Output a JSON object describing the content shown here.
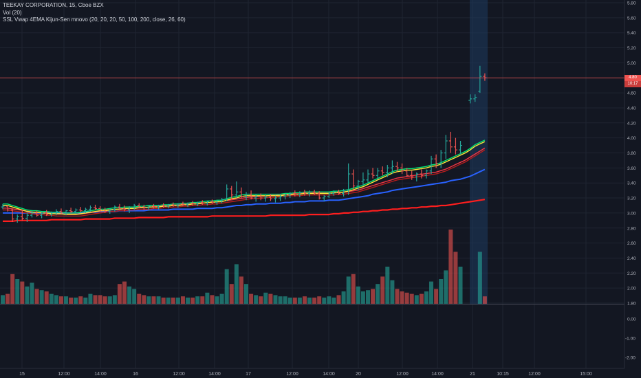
{
  "header": {
    "symbol_line": "TEEKAY CORPORATION, 15, Cboe BZX",
    "volume_line": "Vol (20)",
    "indicator_line": "SSL Vwap 4EMA Kijun-Sen mnovo (20, 20, 20, 50, 100, 200, close, 26, 60)"
  },
  "price_badge": {
    "price": "4.80",
    "time": "10:17"
  },
  "colors": {
    "background": "#131722",
    "grid": "#1f2431",
    "axis_text": "#b2b5be",
    "up": "#26a69a",
    "down": "#ef5350",
    "ema_green": "#00e676",
    "ema_yellow": "#ffeb3b",
    "ema_red": "#f23645",
    "ema_darkred": "#b71c1c",
    "vwap_blue": "#2962ff",
    "long_red": "#ff1e1e",
    "highlight": "#1e3a5f"
  },
  "chart_data": {
    "type": "candlestick",
    "price_axis": {
      "min": 1.8,
      "max": 5.8,
      "ticks": [
        "1.80",
        "2.00",
        "2.20",
        "2.40",
        "2.60",
        "2.80",
        "3.00",
        "3.20",
        "3.40",
        "3.60",
        "3.80",
        "4.00",
        "4.20",
        "4.40",
        "4.60",
        "4.80",
        "5.00",
        "5.20",
        "5.40",
        "5.60",
        "5.80"
      ]
    },
    "volume_panel_axis": {
      "ticks": [
        "0.00",
        "-1.00",
        "-2.00"
      ]
    },
    "x_axis_labels": [
      "15",
      "12:00",
      "14:00",
      "16",
      "12:00",
      "14:00",
      "17",
      "12:00",
      "14:00",
      "20",
      "12:00",
      "14:00",
      "21",
      "10:15",
      "12:00",
      "15:00"
    ],
    "last_price": 4.8,
    "bars": [
      [
        3.08,
        3.12,
        3.05,
        3.09,
        35
      ],
      [
        3.09,
        3.1,
        3.02,
        3.04,
        40
      ],
      [
        3.04,
        3.06,
        2.88,
        2.92,
        120
      ],
      [
        2.92,
        2.98,
        2.87,
        2.95,
        100
      ],
      [
        2.95,
        3.05,
        2.9,
        2.93,
        90
      ],
      [
        2.93,
        3.0,
        2.88,
        2.97,
        70
      ],
      [
        2.97,
        3.04,
        2.94,
        3.0,
        85
      ],
      [
        3.0,
        3.03,
        2.95,
        2.97,
        60
      ],
      [
        2.97,
        3.02,
        2.93,
        3.0,
        55
      ],
      [
        3.0,
        3.04,
        2.96,
        2.98,
        50
      ],
      [
        2.98,
        3.02,
        2.95,
        3.0,
        40
      ],
      [
        3.0,
        3.05,
        2.97,
        3.02,
        35
      ],
      [
        3.02,
        3.06,
        2.99,
        3.01,
        30
      ],
      [
        3.01,
        3.04,
        2.97,
        3.03,
        30
      ],
      [
        3.03,
        3.07,
        3.0,
        3.02,
        25
      ],
      [
        3.02,
        3.06,
        2.99,
        3.04,
        25
      ],
      [
        3.04,
        3.08,
        3.01,
        3.03,
        30
      ],
      [
        3.03,
        3.07,
        3.0,
        3.05,
        25
      ],
      [
        3.05,
        3.1,
        3.02,
        3.07,
        40
      ],
      [
        3.07,
        3.11,
        3.04,
        3.06,
        35
      ],
      [
        3.06,
        3.09,
        3.02,
        3.04,
        35
      ],
      [
        3.04,
        3.07,
        3.0,
        3.02,
        30
      ],
      [
        3.02,
        3.06,
        2.99,
        3.05,
        30
      ],
      [
        3.05,
        3.1,
        3.02,
        3.08,
        35
      ],
      [
        3.08,
        3.12,
        3.04,
        3.06,
        80
      ],
      [
        3.06,
        3.1,
        3.02,
        3.05,
        90
      ],
      [
        3.05,
        3.09,
        3.0,
        3.07,
        70
      ],
      [
        3.07,
        3.12,
        3.04,
        3.1,
        60
      ],
      [
        3.1,
        3.13,
        3.06,
        3.08,
        40
      ],
      [
        3.08,
        3.11,
        3.04,
        3.07,
        35
      ],
      [
        3.07,
        3.1,
        3.03,
        3.09,
        30
      ],
      [
        3.09,
        3.12,
        3.06,
        3.08,
        30
      ],
      [
        3.08,
        3.11,
        3.05,
        3.1,
        30
      ],
      [
        3.1,
        3.13,
        3.07,
        3.09,
        25
      ],
      [
        3.09,
        3.12,
        3.06,
        3.11,
        25
      ],
      [
        3.11,
        3.14,
        3.08,
        3.1,
        25
      ],
      [
        3.1,
        3.13,
        3.07,
        3.12,
        25
      ],
      [
        3.12,
        3.15,
        3.09,
        3.11,
        30
      ],
      [
        3.11,
        3.14,
        3.08,
        3.13,
        25
      ],
      [
        3.13,
        3.16,
        3.1,
        3.12,
        25
      ],
      [
        3.12,
        3.15,
        3.09,
        3.14,
        30
      ],
      [
        3.14,
        3.17,
        3.11,
        3.13,
        30
      ],
      [
        3.13,
        3.16,
        3.1,
        3.15,
        45
      ],
      [
        3.15,
        3.18,
        3.12,
        3.14,
        35
      ],
      [
        3.14,
        3.17,
        3.11,
        3.16,
        30
      ],
      [
        3.16,
        3.2,
        3.13,
        3.18,
        40
      ],
      [
        3.18,
        3.38,
        3.16,
        3.32,
        140
      ],
      [
        3.32,
        3.36,
        3.18,
        3.24,
        80
      ],
      [
        3.24,
        3.42,
        3.2,
        3.28,
        160
      ],
      [
        3.28,
        3.34,
        3.2,
        3.22,
        110
      ],
      [
        3.22,
        3.28,
        3.17,
        3.25,
        80
      ],
      [
        3.25,
        3.3,
        3.18,
        3.2,
        40
      ],
      [
        3.2,
        3.25,
        3.15,
        3.22,
        35
      ],
      [
        3.22,
        3.26,
        3.17,
        3.2,
        30
      ],
      [
        3.2,
        3.24,
        3.15,
        3.21,
        45
      ],
      [
        3.21,
        3.25,
        3.16,
        3.19,
        40
      ],
      [
        3.19,
        3.23,
        3.14,
        3.2,
        35
      ],
      [
        3.2,
        3.24,
        3.16,
        3.22,
        30
      ],
      [
        3.22,
        3.26,
        3.18,
        3.24,
        30
      ],
      [
        3.24,
        3.28,
        3.2,
        3.26,
        25
      ],
      [
        3.26,
        3.3,
        3.22,
        3.25,
        25
      ],
      [
        3.25,
        3.29,
        3.21,
        3.27,
        25
      ],
      [
        3.27,
        3.31,
        3.23,
        3.26,
        30
      ],
      [
        3.26,
        3.3,
        3.22,
        3.28,
        25
      ],
      [
        3.28,
        3.31,
        3.24,
        3.26,
        25
      ],
      [
        3.26,
        3.29,
        3.18,
        3.2,
        30
      ],
      [
        3.2,
        3.24,
        3.16,
        3.22,
        25
      ],
      [
        3.22,
        3.28,
        3.2,
        3.26,
        30
      ],
      [
        3.26,
        3.3,
        3.23,
        3.28,
        25
      ],
      [
        3.28,
        3.31,
        3.24,
        3.26,
        35
      ],
      [
        3.26,
        3.32,
        3.22,
        3.3,
        50
      ],
      [
        3.3,
        3.66,
        3.24,
        3.52,
        110
      ],
      [
        3.52,
        3.58,
        3.32,
        3.36,
        120
      ],
      [
        3.36,
        3.44,
        3.3,
        3.42,
        70
      ],
      [
        3.42,
        3.54,
        3.36,
        3.44,
        50
      ],
      [
        3.44,
        3.58,
        3.4,
        3.52,
        55
      ],
      [
        3.52,
        3.6,
        3.46,
        3.5,
        60
      ],
      [
        3.5,
        3.6,
        3.45,
        3.56,
        80
      ],
      [
        3.56,
        3.62,
        3.5,
        3.54,
        110
      ],
      [
        3.54,
        3.64,
        3.48,
        3.6,
        150
      ],
      [
        3.6,
        3.7,
        3.52,
        3.62,
        95
      ],
      [
        3.62,
        3.68,
        3.55,
        3.6,
        60
      ],
      [
        3.6,
        3.66,
        3.52,
        3.56,
        50
      ],
      [
        3.56,
        3.6,
        3.48,
        3.5,
        45
      ],
      [
        3.5,
        3.56,
        3.44,
        3.48,
        40
      ],
      [
        3.48,
        3.54,
        3.42,
        3.52,
        35
      ],
      [
        3.52,
        3.58,
        3.46,
        3.5,
        40
      ],
      [
        3.5,
        3.58,
        3.46,
        3.56,
        50
      ],
      [
        3.56,
        3.76,
        3.52,
        3.72,
        90
      ],
      [
        3.72,
        3.78,
        3.6,
        3.66,
        60
      ],
      [
        3.66,
        3.84,
        3.6,
        3.8,
        100
      ],
      [
        3.8,
        4.04,
        3.72,
        3.96,
        135
      ],
      [
        3.96,
        4.08,
        3.8,
        3.88,
        300
      ],
      [
        3.88,
        4.0,
        3.78,
        3.84,
        210
      ],
      [
        3.84,
        3.96,
        3.78,
        3.9,
        150
      ],
      [
        null,
        null,
        null,
        null,
        0
      ],
      [
        4.5,
        4.58,
        4.46,
        4.52,
        0
      ],
      [
        4.52,
        4.58,
        4.48,
        4.54,
        0
      ],
      [
        4.62,
        4.96,
        4.6,
        4.82,
        210
      ],
      [
        4.82,
        4.86,
        4.76,
        4.8,
        30
      ]
    ],
    "ema_fast": [
      3.1,
      3.1,
      3.08,
      3.06,
      3.04,
      3.02,
      3.01,
      3.01,
      3.0,
      3.0,
      2.99,
      2.99,
      2.99,
      2.98,
      2.98,
      2.98,
      2.99,
      3.0,
      3.01,
      3.02,
      3.03,
      3.03,
      3.04,
      3.05,
      3.05,
      3.06,
      3.06,
      3.06,
      3.07,
      3.07,
      3.08,
      3.08,
      3.08,
      3.09,
      3.09,
      3.1,
      3.1,
      3.11,
      3.11,
      3.12,
      3.12,
      3.13,
      3.14,
      3.14,
      3.15,
      3.15,
      3.17,
      3.19,
      3.2,
      3.22,
      3.23,
      3.23,
      3.23,
      3.23,
      3.23,
      3.23,
      3.23,
      3.23,
      3.24,
      3.24,
      3.25,
      3.25,
      3.26,
      3.26,
      3.26,
      3.26,
      3.26,
      3.26,
      3.27,
      3.27,
      3.28,
      3.29,
      3.31,
      3.33,
      3.35,
      3.38,
      3.41,
      3.44,
      3.47,
      3.5,
      3.53,
      3.55,
      3.56,
      3.57,
      3.57,
      3.58,
      3.59,
      3.6,
      3.62,
      3.63,
      3.65,
      3.68,
      3.71,
      3.74,
      3.77,
      3.8,
      3.84,
      3.89,
      3.92,
      3.95
    ],
    "ema_slow": [
      3.04,
      3.04,
      3.03,
      3.02,
      3.01,
      3.0,
      2.99,
      2.98,
      2.98,
      2.97,
      2.97,
      2.96,
      2.96,
      2.96,
      2.96,
      2.96,
      2.96,
      2.97,
      2.98,
      2.99,
      3.0,
      3.01,
      3.02,
      3.02,
      3.03,
      3.03,
      3.04,
      3.04,
      3.05,
      3.05,
      3.05,
      3.06,
      3.06,
      3.07,
      3.07,
      3.08,
      3.08,
      3.09,
      3.09,
      3.1,
      3.1,
      3.11,
      3.11,
      3.12,
      3.12,
      3.13,
      3.14,
      3.15,
      3.16,
      3.17,
      3.18,
      3.19,
      3.19,
      3.2,
      3.2,
      3.21,
      3.21,
      3.22,
      3.22,
      3.23,
      3.23,
      3.23,
      3.24,
      3.24,
      3.24,
      3.24,
      3.24,
      3.24,
      3.24,
      3.25,
      3.25,
      3.26,
      3.27,
      3.28,
      3.3,
      3.32,
      3.34,
      3.36,
      3.38,
      3.4,
      3.42,
      3.44,
      3.45,
      3.46,
      3.47,
      3.48,
      3.49,
      3.5,
      3.51,
      3.52,
      3.54,
      3.56,
      3.59,
      3.62,
      3.65,
      3.68,
      3.72,
      3.76,
      3.8,
      3.84
    ],
    "vwap_line": [
      3.0,
      3.0,
      3.0,
      3.0,
      3.0,
      3.0,
      3.0,
      3.0,
      3.0,
      3.0,
      3.0,
      3.0,
      3.0,
      3.0,
      3.0,
      3.0,
      3.0,
      3.01,
      3.01,
      3.01,
      3.02,
      3.02,
      3.02,
      3.02,
      3.03,
      3.03,
      3.03,
      3.03,
      3.03,
      3.03,
      3.04,
      3.04,
      3.04,
      3.04,
      3.04,
      3.05,
      3.05,
      3.05,
      3.05,
      3.05,
      3.06,
      3.06,
      3.06,
      3.06,
      3.07,
      3.07,
      3.08,
      3.09,
      3.1,
      3.1,
      3.11,
      3.11,
      3.12,
      3.12,
      3.12,
      3.13,
      3.13,
      3.13,
      3.14,
      3.14,
      3.15,
      3.15,
      3.15,
      3.16,
      3.16,
      3.16,
      3.16,
      3.17,
      3.17,
      3.17,
      3.18,
      3.19,
      3.2,
      3.21,
      3.22,
      3.23,
      3.25,
      3.26,
      3.27,
      3.28,
      3.3,
      3.31,
      3.32,
      3.33,
      3.34,
      3.35,
      3.36,
      3.37,
      3.38,
      3.39,
      3.4,
      3.41,
      3.43,
      3.44,
      3.45,
      3.47,
      3.49,
      3.52,
      3.55,
      3.58
    ],
    "long_ema": [
      2.89,
      2.89,
      2.89,
      2.9,
      2.9,
      2.9,
      2.9,
      2.9,
      2.9,
      2.9,
      2.91,
      2.91,
      2.91,
      2.91,
      2.91,
      2.91,
      2.91,
      2.92,
      2.92,
      2.92,
      2.92,
      2.92,
      2.92,
      2.93,
      2.93,
      2.93,
      2.93,
      2.93,
      2.94,
      2.94,
      2.94,
      2.94,
      2.94,
      2.94,
      2.95,
      2.95,
      2.95,
      2.95,
      2.95,
      2.95,
      2.95,
      2.95,
      2.95,
      2.96,
      2.96,
      2.96,
      2.96,
      2.96,
      2.96,
      2.96,
      2.96,
      2.96,
      2.96,
      2.96,
      2.96,
      2.97,
      2.97,
      2.97,
      2.97,
      2.97,
      2.97,
      2.97,
      2.97,
      2.98,
      2.98,
      2.98,
      2.98,
      2.98,
      2.99,
      2.99,
      3.0,
      3.0,
      3.01,
      3.01,
      3.02,
      3.02,
      3.03,
      3.03,
      3.04,
      3.04,
      3.05,
      3.05,
      3.06,
      3.06,
      3.07,
      3.07,
      3.08,
      3.08,
      3.09,
      3.09,
      3.1,
      3.1,
      3.11,
      3.12,
      3.13,
      3.14,
      3.15,
      3.16,
      3.17,
      3.18
    ]
  }
}
